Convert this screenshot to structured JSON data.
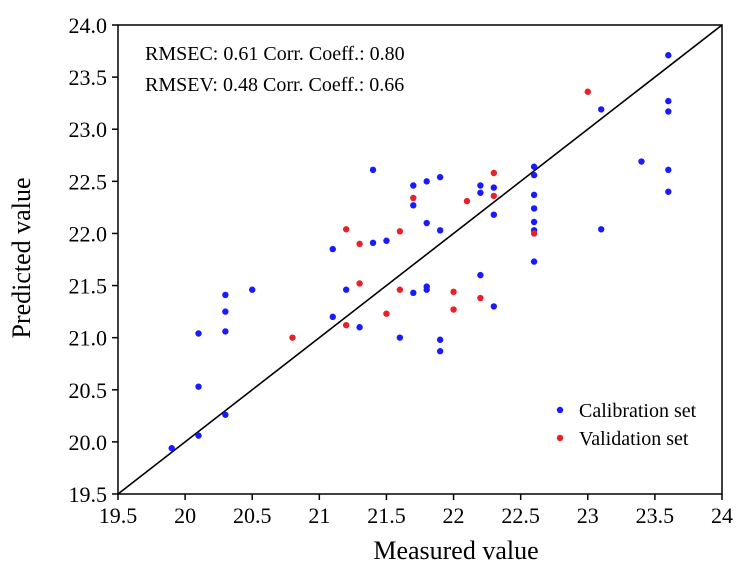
{
  "chart_data": {
    "type": "scatter",
    "xlabel": "Measured value",
    "ylabel": "Predicted value",
    "xlim": [
      19.5,
      24
    ],
    "ylim": [
      19.5,
      24
    ],
    "xticks": [
      "19.5",
      "20",
      "20.5",
      "21",
      "21.5",
      "22",
      "22.5",
      "23",
      "23.5",
      "24"
    ],
    "yticks": [
      "19.5",
      "20.0",
      "20.5",
      "21.0",
      "21.5",
      "22.0",
      "22.5",
      "23.0",
      "23.5",
      "24.0"
    ],
    "grid": false,
    "legend_position": "bottom-right",
    "annotations": [
      "RMSEC: 0.61 Corr. Coeff.: 0.80",
      "RMSEV: 0.48 Corr. Coeff.: 0.66"
    ],
    "reference_line": {
      "x": [
        19.5,
        24
      ],
      "y": [
        19.5,
        24
      ]
    },
    "series": [
      {
        "name": "Calibration set",
        "color": "#1a1aff",
        "points": [
          [
            19.9,
            19.94
          ],
          [
            20.1,
            20.06
          ],
          [
            20.1,
            20.53
          ],
          [
            20.1,
            21.04
          ],
          [
            20.3,
            20.26
          ],
          [
            20.3,
            21.06
          ],
          [
            20.3,
            21.25
          ],
          [
            20.3,
            21.41
          ],
          [
            20.5,
            21.46
          ],
          [
            21.1,
            21.85
          ],
          [
            21.1,
            21.2
          ],
          [
            21.2,
            21.46
          ],
          [
            21.3,
            21.1
          ],
          [
            21.4,
            21.91
          ],
          [
            21.4,
            22.61
          ],
          [
            21.5,
            21.93
          ],
          [
            21.6,
            21.0
          ],
          [
            21.7,
            22.46
          ],
          [
            21.7,
            22.27
          ],
          [
            21.7,
            21.43
          ],
          [
            21.8,
            22.1
          ],
          [
            21.8,
            21.49
          ],
          [
            21.8,
            21.46
          ],
          [
            21.8,
            22.5
          ],
          [
            21.9,
            22.54
          ],
          [
            21.9,
            22.03
          ],
          [
            21.9,
            20.98
          ],
          [
            21.9,
            20.87
          ],
          [
            22.2,
            22.46
          ],
          [
            22.2,
            22.39
          ],
          [
            22.2,
            21.6
          ],
          [
            22.3,
            22.44
          ],
          [
            22.3,
            22.18
          ],
          [
            22.3,
            21.3
          ],
          [
            22.6,
            22.64
          ],
          [
            22.6,
            22.56
          ],
          [
            22.6,
            22.37
          ],
          [
            22.6,
            22.24
          ],
          [
            22.6,
            22.11
          ],
          [
            22.6,
            22.03
          ],
          [
            22.6,
            21.73
          ],
          [
            23.1,
            23.19
          ],
          [
            23.1,
            22.04
          ],
          [
            23.4,
            22.69
          ],
          [
            23.6,
            23.71
          ],
          [
            23.6,
            23.27
          ],
          [
            23.6,
            23.17
          ],
          [
            23.6,
            22.61
          ],
          [
            23.6,
            22.4
          ]
        ]
      },
      {
        "name": "Validation set",
        "color": "#e8202a",
        "points": [
          [
            20.8,
            21.0
          ],
          [
            21.2,
            22.04
          ],
          [
            21.2,
            21.12
          ],
          [
            21.3,
            21.9
          ],
          [
            21.3,
            21.52
          ],
          [
            21.5,
            21.23
          ],
          [
            21.6,
            22.02
          ],
          [
            21.6,
            21.46
          ],
          [
            21.7,
            22.34
          ],
          [
            22.0,
            21.44
          ],
          [
            22.0,
            21.27
          ],
          [
            22.1,
            22.31
          ],
          [
            22.2,
            21.38
          ],
          [
            22.3,
            22.58
          ],
          [
            22.3,
            22.36
          ],
          [
            22.6,
            22.0
          ],
          [
            23.0,
            23.36
          ]
        ]
      }
    ]
  }
}
